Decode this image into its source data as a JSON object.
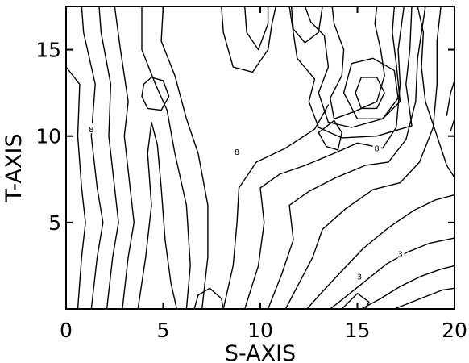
{
  "chart_data": {
    "type": "contour",
    "title": "",
    "xlabel": "S-AXIS",
    "ylabel": "T-AXIS",
    "xlim": [
      0,
      20
    ],
    "ylim": [
      0,
      17.5
    ],
    "x_ticks": [
      {
        "value": 0,
        "label": "0"
      },
      {
        "value": 5,
        "label": "5"
      },
      {
        "value": 10,
        "label": "10"
      },
      {
        "value": 15,
        "label": "15"
      },
      {
        "value": 20,
        "label": "20"
      }
    ],
    "y_ticks": [
      {
        "value": 5,
        "label": "5"
      },
      {
        "value": 10,
        "label": "10"
      },
      {
        "value": 15,
        "label": "15"
      }
    ],
    "contour_labels": [
      {
        "text": "8",
        "x": 1.3,
        "y": 10.4
      },
      {
        "text": "8",
        "x": 8.8,
        "y": 9.1
      },
      {
        "text": "8",
        "x": 16.0,
        "y": 9.3
      },
      {
        "text": "3",
        "x": 17.2,
        "y": 3.2
      },
      {
        "text": "3",
        "x": 15.1,
        "y": 1.9
      }
    ],
    "contours": [
      {
        "points": [
          [
            0.6,
            0
          ],
          [
            0.8,
            3
          ],
          [
            1.0,
            5
          ],
          [
            0.8,
            7
          ],
          [
            0.6,
            10
          ],
          [
            0.7,
            13
          ],
          [
            0,
            14
          ]
        ]
      },
      {
        "points": [
          [
            1.3,
            0
          ],
          [
            1.6,
            3
          ],
          [
            1.9,
            5
          ],
          [
            1.6,
            7
          ],
          [
            1.3,
            10
          ],
          [
            1.5,
            13
          ],
          [
            0.9,
            16
          ],
          [
            0.8,
            17.5
          ]
        ]
      },
      {
        "points": [
          [
            2.1,
            0
          ],
          [
            2.4,
            3
          ],
          [
            2.7,
            5
          ],
          [
            2.5,
            7
          ],
          [
            2.2,
            10
          ],
          [
            2.3,
            13
          ],
          [
            1.8,
            16
          ],
          [
            1.7,
            17.5
          ]
        ]
      },
      {
        "points": [
          [
            2.9,
            0
          ],
          [
            3.2,
            3
          ],
          [
            3.5,
            5
          ],
          [
            3.3,
            7
          ],
          [
            3.0,
            10
          ],
          [
            3.2,
            12
          ],
          [
            2.8,
            15
          ],
          [
            2.5,
            17.5
          ]
        ]
      },
      {
        "points": [
          [
            3.7,
            0
          ],
          [
            4.1,
            3
          ],
          [
            4.4,
            6
          ],
          [
            4.2,
            9
          ],
          [
            4.4,
            10.8
          ],
          [
            4.7,
            9.5
          ],
          [
            4.9,
            7
          ],
          [
            5.1,
            4
          ],
          [
            5.4,
            1.5
          ],
          [
            5.7,
            0
          ]
        ]
      },
      {
        "points": [
          [
            6.2,
            0
          ],
          [
            6.4,
            2.5
          ],
          [
            6.2,
            6
          ],
          [
            5.6,
            9
          ],
          [
            5.2,
            11.5
          ],
          [
            4.6,
            13
          ],
          [
            3.9,
            15
          ],
          [
            3.9,
            17.5
          ]
        ]
      },
      {
        "points": [
          [
            7.0,
            0
          ],
          [
            7.3,
            3
          ],
          [
            7.3,
            6
          ],
          [
            6.8,
            9
          ],
          [
            6.2,
            11
          ],
          [
            5.6,
            13.5
          ],
          [
            4.9,
            15.5
          ],
          [
            5.0,
            17.5
          ]
        ]
      },
      {
        "points": [
          [
            8.1,
            0
          ],
          [
            8.6,
            2.5
          ],
          [
            8.8,
            5
          ],
          [
            8.9,
            7
          ],
          [
            9.8,
            8.5
          ],
          [
            11.3,
            9.3
          ],
          [
            12.8,
            10.4
          ],
          [
            13.5,
            11.8
          ]
        ]
      },
      {
        "points": [
          [
            9.2,
            0
          ],
          [
            9.9,
            2.5
          ],
          [
            10.2,
            5
          ],
          [
            10.0,
            7
          ],
          [
            11.0,
            7.8
          ],
          [
            12.3,
            8.3
          ],
          [
            13.8,
            9.0
          ],
          [
            15.0,
            9.6
          ],
          [
            16.3,
            9.3
          ],
          [
            17.0,
            10.5
          ],
          [
            17.2,
            13
          ],
          [
            17.1,
            15
          ],
          [
            17.4,
            17.5
          ]
        ]
      },
      {
        "points": [
          [
            10.4,
            0
          ],
          [
            11.1,
            2
          ],
          [
            11.7,
            4
          ],
          [
            11.5,
            6
          ],
          [
            12.5,
            6.8
          ],
          [
            13.9,
            7.6
          ],
          [
            15.4,
            8.3
          ],
          [
            16.6,
            8.5
          ],
          [
            17.5,
            9.8
          ],
          [
            18.0,
            12
          ],
          [
            18.1,
            14.5
          ],
          [
            18.5,
            17.5
          ]
        ]
      },
      {
        "points": [
          [
            11.3,
            0
          ],
          [
            12.0,
            1.5
          ],
          [
            12.7,
            3
          ],
          [
            13.2,
            4.6
          ],
          [
            14.4,
            5.8
          ],
          [
            15.8,
            6.9
          ],
          [
            17.2,
            7.3
          ],
          [
            18.2,
            8.5
          ],
          [
            18.9,
            10.5
          ],
          [
            19.1,
            13
          ],
          [
            19.1,
            15.5
          ],
          [
            19.3,
            17.5
          ]
        ]
      },
      {
        "points": [
          [
            12.4,
            0
          ],
          [
            13.2,
            1.0
          ],
          [
            14.2,
            2.2
          ],
          [
            15.3,
            3.5
          ],
          [
            16.6,
            4.7
          ],
          [
            17.9,
            5.7
          ],
          [
            19.0,
            6.3
          ],
          [
            20,
            6.6
          ]
        ]
      },
      {
        "points": [
          [
            13.6,
            0
          ],
          [
            14.5,
            0.8
          ],
          [
            15.5,
            1.7
          ],
          [
            16.5,
            2.6
          ],
          [
            17.6,
            3.3
          ],
          [
            18.7,
            3.8
          ],
          [
            20,
            4.1
          ]
        ]
      },
      {
        "points": [
          [
            15.2,
            0
          ],
          [
            16.2,
            0.6
          ],
          [
            17.2,
            1.3
          ],
          [
            18.3,
            1.9
          ],
          [
            19.3,
            2.3
          ],
          [
            20,
            2.5
          ]
        ]
      },
      {
        "points": [
          [
            16.9,
            0
          ],
          [
            17.8,
            0.4
          ],
          [
            18.7,
            0.8
          ],
          [
            19.4,
            1.1
          ],
          [
            20,
            1.2
          ]
        ]
      },
      {
        "points": [
          [
            18.1,
            17.5
          ],
          [
            18.4,
            16
          ],
          [
            18.3,
            14
          ],
          [
            18.5,
            12
          ],
          [
            19.1,
            10
          ],
          [
            19.6,
            8.3
          ],
          [
            20,
            7.6
          ]
        ]
      },
      {
        "points": [
          [
            6.6,
            0
          ],
          [
            6.8,
            0.8
          ],
          [
            7.4,
            1.2
          ],
          [
            8.0,
            0.6
          ],
          [
            8.1,
            0
          ]
        ]
      },
      {
        "points": [
          [
            8.0,
            17.5
          ],
          [
            8.1,
            16
          ],
          [
            8.6,
            14
          ],
          [
            9.6,
            13.7
          ],
          [
            10.4,
            15
          ],
          [
            10.6,
            16.5
          ],
          [
            10.8,
            17.5
          ]
        ]
      },
      {
        "points": [
          [
            9.2,
            17.5
          ],
          [
            9.3,
            16
          ],
          [
            9.9,
            15
          ],
          [
            10.4,
            16.5
          ],
          [
            10.4,
            17.5
          ]
        ]
      },
      {
        "points": [
          [
            11.6,
            17.5
          ],
          [
            11.7,
            16.2
          ],
          [
            12.3,
            15.4
          ],
          [
            13.0,
            16
          ],
          [
            13.2,
            17.5
          ]
        ]
      },
      {
        "points": [
          [
            13.7,
            17.5
          ],
          [
            13.8,
            16.5
          ],
          [
            14.3,
            15
          ],
          [
            14.2,
            13.5
          ],
          [
            13.6,
            12.2
          ],
          [
            13.8,
            11.0
          ],
          [
            14.8,
            11.4
          ],
          [
            16.0,
            12.0
          ],
          [
            16.4,
            13.5
          ],
          [
            16.2,
            15.0
          ],
          [
            15.9,
            16.5
          ],
          [
            16.0,
            17.5
          ]
        ]
      },
      {
        "points": [
          [
            12.3,
            17.5
          ],
          [
            12.6,
            16.6
          ],
          [
            13.3,
            15.8
          ],
          [
            13.5,
            14
          ],
          [
            13.0,
            12.5
          ],
          [
            13.5,
            10.8
          ],
          [
            14.7,
            10.5
          ],
          [
            16.3,
            11.0
          ],
          [
            17.2,
            12.0
          ],
          [
            17.0,
            14.2
          ],
          [
            16.8,
            16.0
          ],
          [
            16.9,
            17.5
          ]
        ]
      },
      {
        "points": [
          [
            11.5,
            17.5
          ],
          [
            11.9,
            14.5
          ],
          [
            12.8,
            13.3
          ],
          [
            12.5,
            12
          ],
          [
            13.0,
            10.5
          ],
          [
            14.2,
            9.9
          ],
          [
            16.0,
            10.0
          ],
          [
            17.8,
            10.6
          ],
          [
            17.5,
            13.0
          ],
          [
            17.7,
            15.0
          ],
          [
            17.8,
            17.5
          ]
        ]
      },
      {
        "closed": true,
        "points": [
          [
            4.0,
            13.0
          ],
          [
            4.4,
            13.4
          ],
          [
            5.0,
            13.2
          ],
          [
            5.3,
            12.3
          ],
          [
            4.9,
            11.5
          ],
          [
            4.2,
            11.6
          ],
          [
            3.9,
            12.3
          ]
        ]
      },
      {
        "closed": true,
        "points": [
          [
            14.9,
            12.5
          ],
          [
            15.2,
            13.4
          ],
          [
            16.0,
            13.4
          ],
          [
            16.4,
            12.5
          ],
          [
            16.0,
            11.6
          ],
          [
            15.2,
            11.6
          ]
        ]
      },
      {
        "closed": true,
        "points": [
          [
            14.3,
            12.5
          ],
          [
            14.7,
            14.2
          ],
          [
            15.8,
            14.5
          ],
          [
            16.9,
            13.8
          ],
          [
            17.1,
            12.2
          ],
          [
            16.3,
            11.0
          ],
          [
            15.0,
            11.0
          ]
        ]
      },
      {
        "closed": true,
        "points": [
          [
            13.0,
            10.2
          ],
          [
            13.8,
            10.9
          ],
          [
            14.2,
            10.2
          ],
          [
            14.0,
            9.2
          ],
          [
            13.4,
            9.4
          ]
        ]
      },
      {
        "closed": true,
        "points": [
          [
            14.2,
            0
          ],
          [
            15.0,
            0.9
          ],
          [
            15.6,
            0.4
          ],
          [
            15.4,
            0
          ]
        ]
      },
      {
        "points": [
          [
            19.6,
            11.2
          ],
          [
            19.8,
            12.5
          ],
          [
            20,
            13.2
          ]
        ]
      },
      {
        "points": [
          [
            20,
            11.0
          ],
          [
            19.8,
            10.3
          ]
        ]
      }
    ]
  }
}
